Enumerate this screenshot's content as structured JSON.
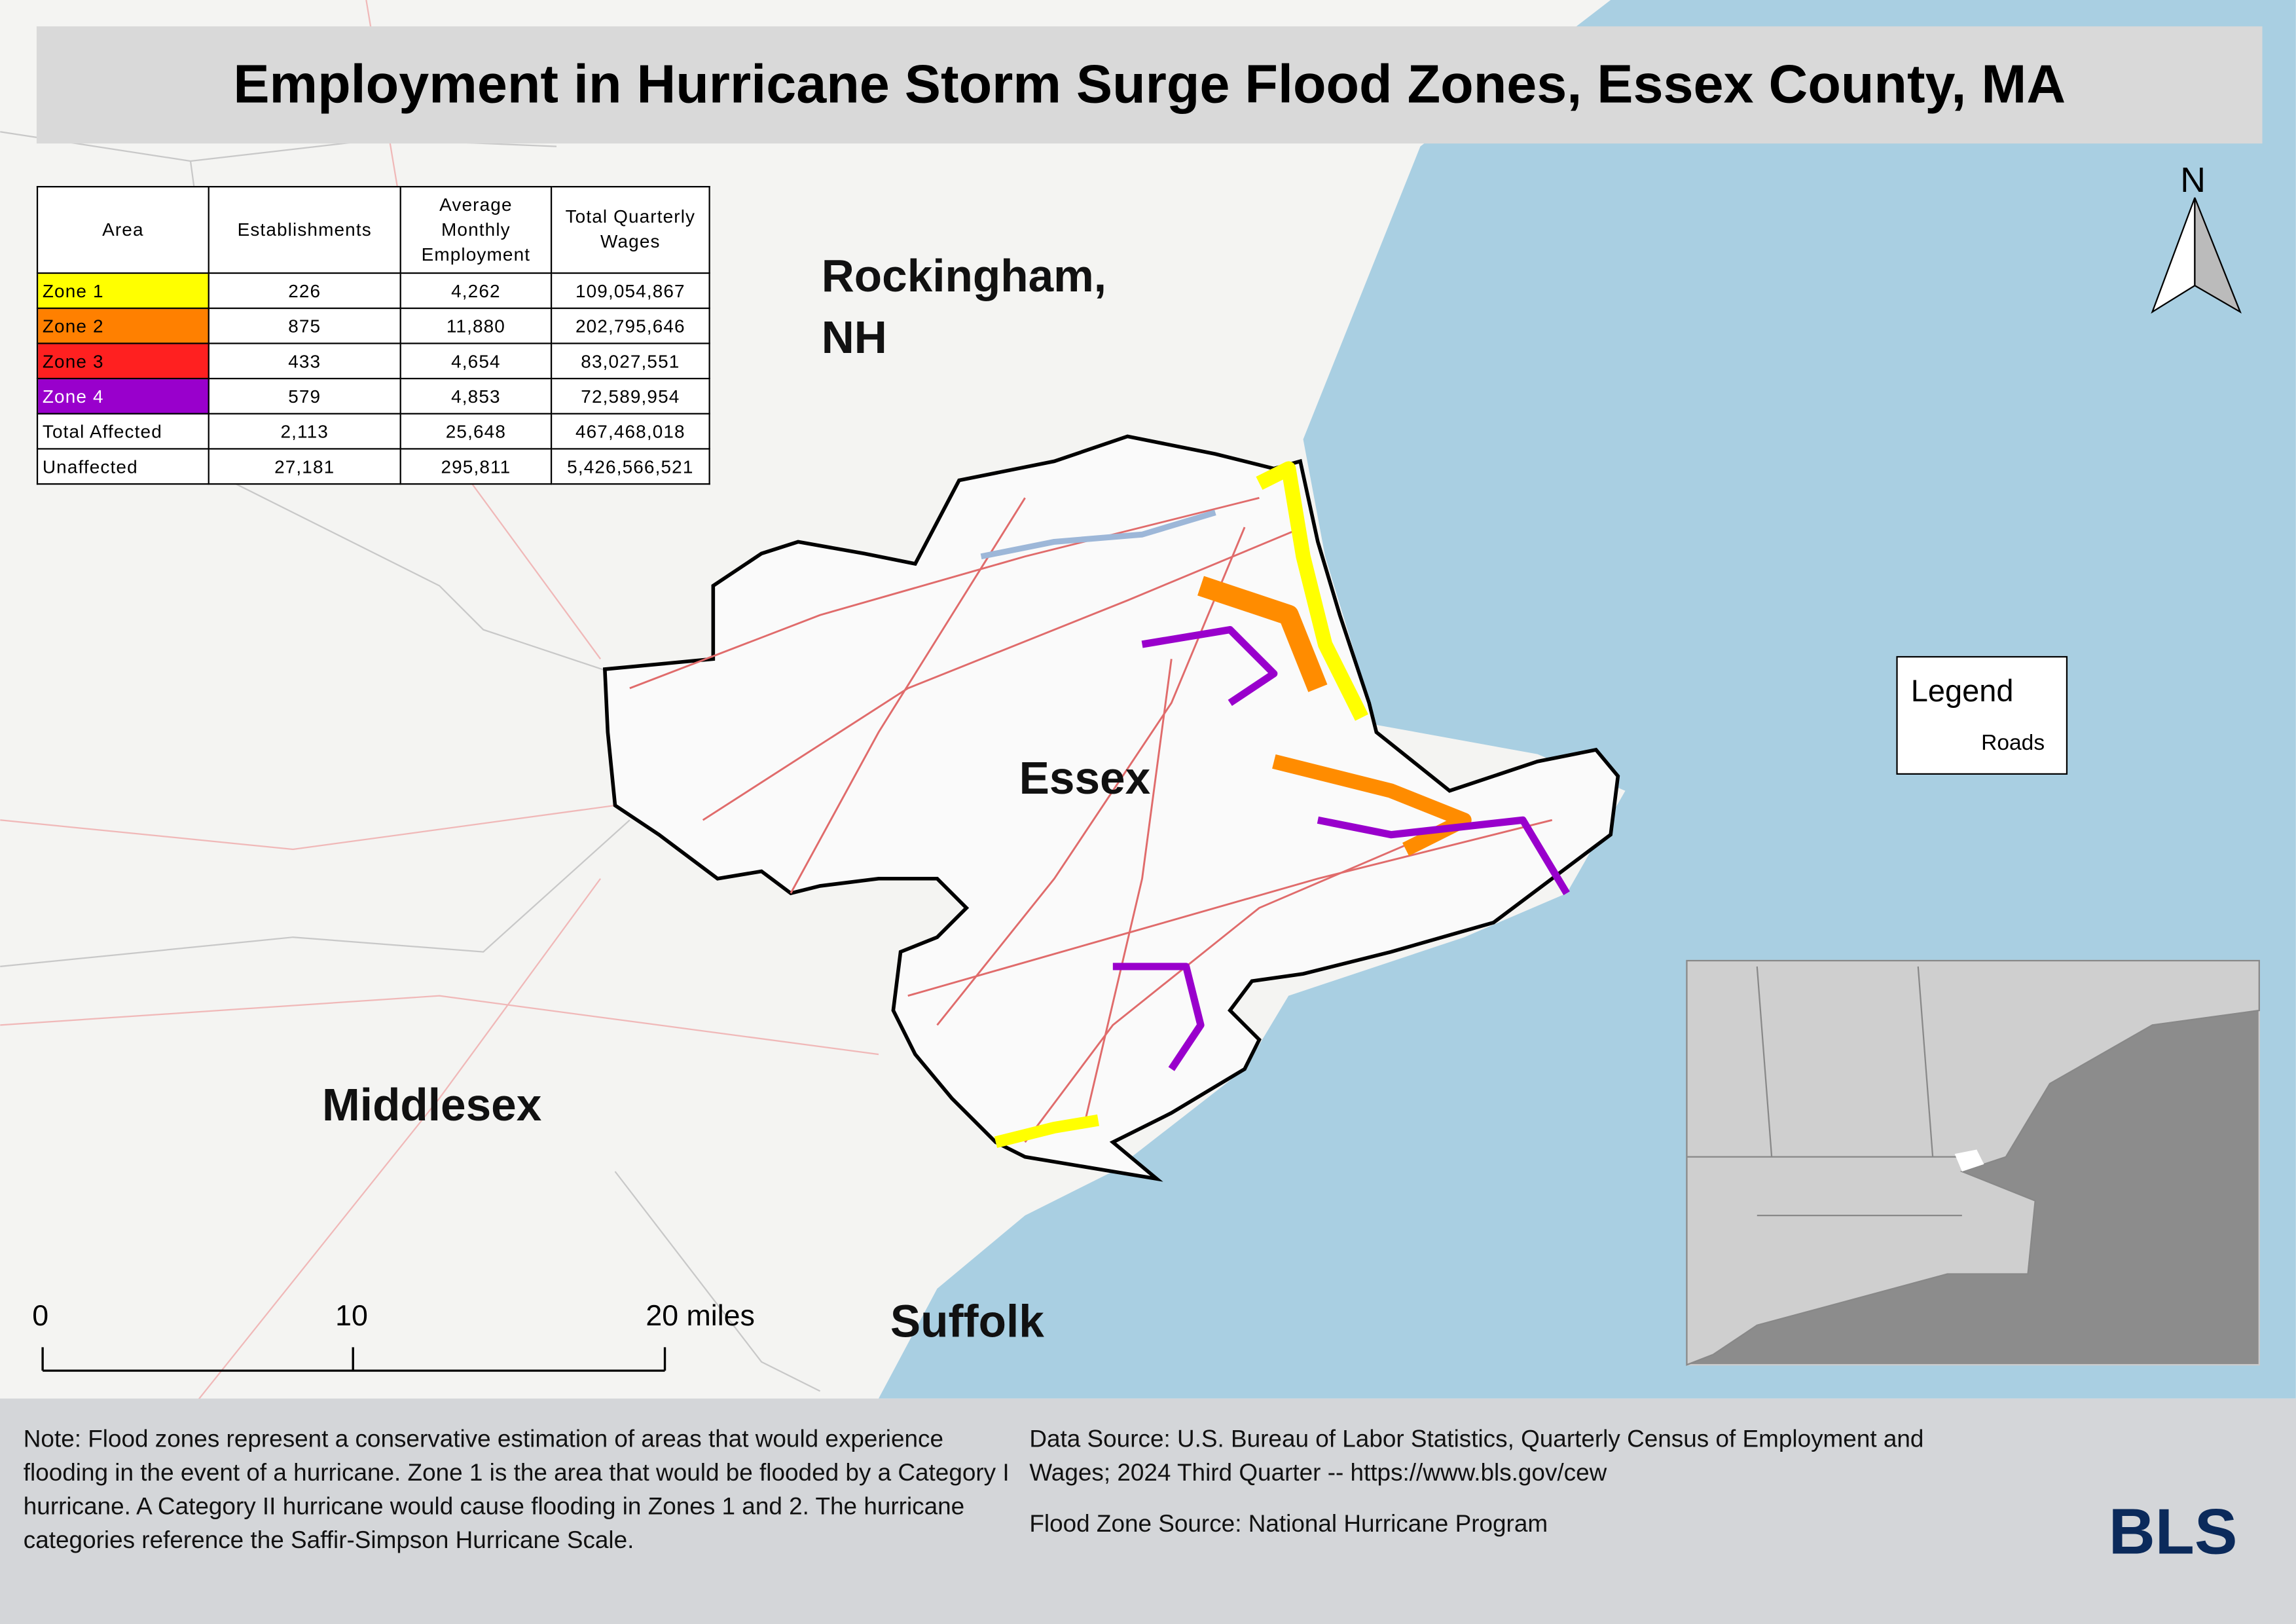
{
  "title": "Employment in Hurricane Storm Surge Flood Zones, Essex County, MA",
  "table": {
    "header": [
      "Area",
      "Establishments",
      "Average Monthly Employment",
      "Total Quarterly Wages"
    ],
    "rows": [
      [
        "Zone 1",
        "226",
        "4,262",
        "109,054,867"
      ],
      [
        "Zone 2",
        "875",
        "11,880",
        "202,795,646"
      ],
      [
        "Zone 3",
        "433",
        "4,654",
        "83,027,551"
      ],
      [
        "Zone 4",
        "579",
        "4,853",
        "72,589,954"
      ],
      [
        "Total Affected",
        "2,113",
        "25,648",
        "467,468,018"
      ],
      [
        "Unaffected",
        "27,181",
        "295,811",
        "5,426,566,521"
      ]
    ]
  },
  "map_labels": {
    "rockingham": "Rockingham, NH",
    "essex": "Essex",
    "middlesex": "Middlesex",
    "suffolk": "Suffolk"
  },
  "north_arrow": "N",
  "legend": {
    "title": "Legend",
    "items": [
      "Roads"
    ]
  },
  "scale_bar": [
    "0",
    "10",
    "20 miles"
  ],
  "footer": {
    "note": "Note: Flood zones represent a conservative estimation of areas that would experience flooding in the event of a hurricane. Zone 1 is the area that would be flooded by a Category I hurricane. A Category II hurricane would cause flooding in Zones 1 and 2. The hurricane categories reference the Saffir-Simpson Hurricane Scale.",
    "data_source": "Data Source: U.S. Bureau of Labor Statistics, Quarterly Census of Employment and Wages; 2024 Third Quarter -- https://www.bls.gov/cew",
    "flood_source": "Flood Zone Source: National Hurricane Program",
    "logo": "BLS"
  }
}
